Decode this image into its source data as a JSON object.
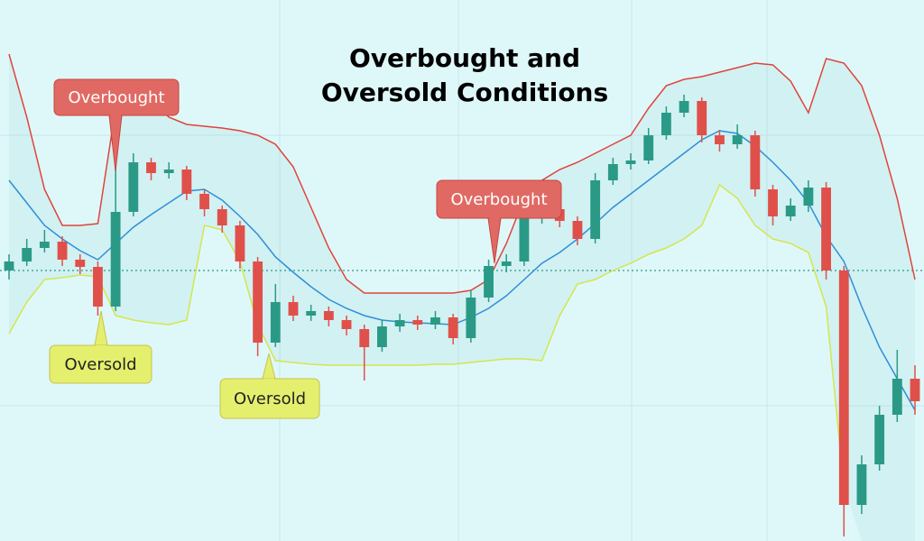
{
  "chart_data": {
    "type": "candlestick",
    "title": "Overbought and Oversold Conditions",
    "ylim": [
      0,
      600
    ],
    "up_color": "#2a9a86",
    "down_color": "#e0504a",
    "reference_line": 300,
    "open": [
      300,
      310,
      325,
      332,
      312,
      304,
      260,
      365,
      420,
      408,
      412,
      385,
      368,
      350,
      310,
      220,
      265,
      250,
      255,
      245,
      235,
      215,
      238,
      245,
      240,
      248,
      225,
      270,
      305,
      310,
      360,
      368,
      355,
      335,
      400,
      418,
      422,
      450,
      475,
      488,
      450,
      440,
      450,
      390,
      360,
      372,
      392,
      300,
      40,
      85,
      140,
      180
    ],
    "high": [
      318,
      335,
      345,
      338,
      318,
      310,
      500,
      430,
      425,
      420,
      416,
      390,
      372,
      355,
      315,
      285,
      272,
      262,
      260,
      250,
      240,
      245,
      252,
      250,
      255,
      252,
      278,
      312,
      318,
      372,
      378,
      372,
      360,
      408,
      425,
      430,
      458,
      482,
      495,
      492,
      456,
      462,
      455,
      395,
      380,
      400,
      398,
      305,
      95,
      150,
      212,
      195
    ],
    "low": [
      290,
      305,
      320,
      305,
      296,
      250,
      255,
      360,
      400,
      402,
      378,
      360,
      342,
      302,
      205,
      215,
      244,
      244,
      238,
      228,
      178,
      210,
      232,
      234,
      235,
      218,
      220,
      265,
      298,
      305,
      352,
      348,
      328,
      330,
      395,
      412,
      418,
      445,
      470,
      442,
      432,
      435,
      382,
      350,
      355,
      365,
      290,
      5,
      30,
      78,
      132,
      140
    ],
    "close": [
      310,
      325,
      332,
      312,
      304,
      260,
      365,
      420,
      408,
      412,
      385,
      368,
      350,
      310,
      220,
      265,
      250,
      255,
      245,
      235,
      215,
      238,
      245,
      240,
      248,
      225,
      270,
      305,
      310,
      360,
      368,
      355,
      335,
      400,
      418,
      422,
      450,
      475,
      488,
      450,
      440,
      450,
      390,
      360,
      372,
      392,
      300,
      40,
      85,
      140,
      180,
      155
    ],
    "bands": [
      {
        "color": "#e0443a",
        "values": [
          540,
          470,
          390,
          350,
          350,
          352,
          480,
          490,
          490,
          470,
          462,
          460,
          458,
          455,
          450,
          440,
          415,
          370,
          325,
          290,
          275,
          275,
          275,
          275,
          275,
          275,
          278,
          290,
          330,
          380,
          400,
          412,
          420,
          430,
          440,
          450,
          480,
          505,
          512,
          515,
          520,
          525,
          530,
          528,
          510,
          475,
          535,
          530,
          505,
          450,
          380,
          290
        ]
      },
      {
        "color": "#2f8fd8",
        "values": [
          400,
          375,
          350,
          335,
          322,
          312,
          330,
          348,
          362,
          375,
          388,
          390,
          378,
          360,
          340,
          315,
          298,
          282,
          268,
          258,
          250,
          245,
          243,
          242,
          241,
          240,
          248,
          258,
          272,
          290,
          308,
          320,
          335,
          352,
          370,
          385,
          400,
          415,
          430,
          445,
          455,
          452,
          438,
          420,
          400,
          375,
          338,
          310,
          260,
          215,
          180,
          145
        ]
      },
      {
        "color": "#d4e64a",
        "values": [
          230,
          265,
          290,
          292,
          295,
          293,
          250,
          245,
          242,
          240,
          245,
          350,
          345,
          310,
          240,
          200,
          198,
          196,
          195,
          195,
          195,
          195,
          195,
          195,
          196,
          196,
          198,
          200,
          202,
          202,
          200,
          250,
          285,
          290,
          300,
          308,
          318,
          325,
          335,
          350,
          395,
          380,
          350,
          335,
          330,
          320,
          260,
          60,
          null,
          null,
          null,
          null
        ]
      }
    ],
    "annotations": [
      {
        "text": "Overbought",
        "kind": "overbought"
      },
      {
        "text": "Oversold",
        "kind": "oversold"
      },
      {
        "text": "Oversold",
        "kind": "oversold"
      },
      {
        "text": "Overbought",
        "kind": "overbought"
      }
    ]
  }
}
